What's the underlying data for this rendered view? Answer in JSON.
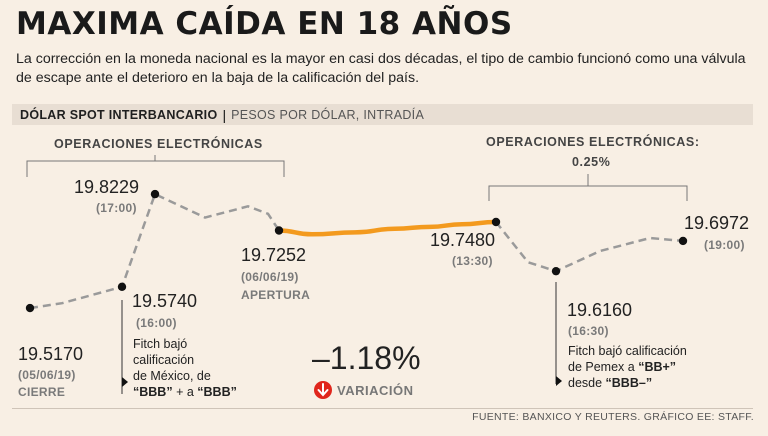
{
  "header": {
    "title": "MAXIMA CAÍDA EN 18 AÑOS",
    "subtitle_line1": "La corrección en la moneda nacional es la mayor en casi dos décadas, el tipo de cambio funcionó como una válvula",
    "subtitle_line2": "de escape ante el deterioro en la baja de la calificación del país."
  },
  "chart_bar": {
    "label_bold": "DÓLAR SPOT INTERBANCARIO",
    "separator": "|",
    "label_light": "PESOS POR DÓLAR, INTRADÍA"
  },
  "ops_left": "OPERACIONES ELECTRÓNICAS",
  "ops_right": {
    "label": "OPERACIONES ELECTRÓNICAS:",
    "value": "0.25%"
  },
  "points": {
    "close": {
      "value": "19.5170",
      "time": "(05/06/19)",
      "tag": "CIERRE"
    },
    "fitch_mx": {
      "value": "19.5740",
      "time": "(16:00)"
    },
    "peak": {
      "value": "19.8229",
      "time": "(17:00)"
    },
    "open": {
      "value": "19.7252",
      "time": "(06/06/19)",
      "tag": "APERTURA"
    },
    "mid": {
      "value": "19.7480",
      "time": "(13:30)"
    },
    "pemex": {
      "value": "19.6160",
      "time": "(16:30)"
    },
    "last": {
      "value": "19.6972",
      "time": "(19:00)"
    }
  },
  "annotations": {
    "mexico": {
      "l1": "Fitch bajó",
      "l2": "calificación",
      "l3": "de México, de",
      "l4a": "“BBB”",
      "l4b": " + a ",
      "l4c": "“BBB”"
    },
    "pemex": {
      "l1": "Fitch bajó calificación",
      "l2": "de Pemex a ",
      "l2b": "“BB+”",
      "l3": "desde ",
      "l3b": "“BBB–”"
    }
  },
  "variation": {
    "value": "–1.18%",
    "label": "VARIACIÓN",
    "color": "#e0261c"
  },
  "source": "FUENTE: BANXICO Y REUTERS. GRÁFICO EE: STAFF.",
  "colors": {
    "highlight": "#f39a1e",
    "dashed": "#9a9a9a",
    "marker": "#111111"
  },
  "chart_data": {
    "type": "line",
    "title": "DÓLAR SPOT INTERBANCARIO",
    "ylabel": "PESOS POR DÓLAR, INTRADÍA",
    "series": [
      {
        "name": "dashed-pre",
        "style": "dashed",
        "values": [
          19.517,
          19.53,
          19.574,
          19.8229,
          19.76,
          19.79,
          19.77,
          19.7252
        ]
      },
      {
        "name": "solid-highlight",
        "style": "solid",
        "values": [
          19.7252,
          19.715,
          19.72,
          19.73,
          19.735,
          19.742,
          19.748
        ]
      },
      {
        "name": "dashed-post",
        "style": "dashed",
        "values": [
          19.748,
          19.64,
          19.616,
          19.67,
          19.705,
          19.6972
        ]
      }
    ],
    "labeled_points": [
      {
        "label": "19.5170",
        "value": 19.517
      },
      {
        "label": "19.5740",
        "value": 19.574
      },
      {
        "label": "19.8229",
        "value": 19.8229
      },
      {
        "label": "19.7252",
        "value": 19.7252
      },
      {
        "label": "19.7480",
        "value": 19.748
      },
      {
        "label": "19.6160",
        "value": 19.616
      },
      {
        "label": "19.6972",
        "value": 19.6972
      }
    ],
    "ylim": [
      19.45,
      19.85
    ]
  }
}
